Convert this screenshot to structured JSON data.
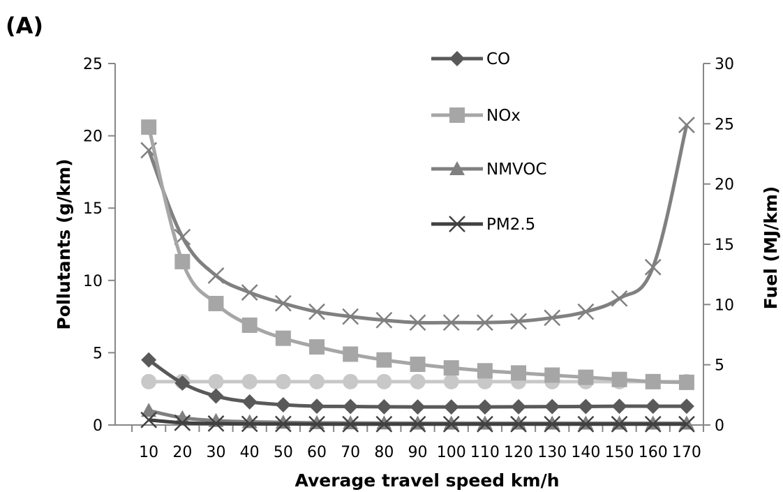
{
  "chart_data": {
    "type": "line",
    "panel_label": "(A)",
    "xlabel": "Average travel speed km/h",
    "ylabel": "Pollutants  (g/km)",
    "y2label": "Fuel (MJ/km)",
    "categories": [
      "10",
      "20",
      "30",
      "40",
      "50",
      "60",
      "70",
      "80",
      "90",
      "100",
      "110",
      "120",
      "130",
      "140",
      "150",
      "160",
      "170"
    ],
    "ylim": [
      0,
      25
    ],
    "y2lim": [
      0,
      30
    ],
    "yticks": [
      "0",
      "5",
      "10",
      "15",
      "20",
      "25"
    ],
    "y2ticks": [
      "0",
      "5",
      "10",
      "15",
      "20",
      "25",
      "30"
    ],
    "legend_position": "top-center",
    "series": [
      {
        "name": "CO",
        "axis": "left",
        "marker": "diamond",
        "color": "#595959",
        "values": [
          4.5,
          2.9,
          2.0,
          1.6,
          1.4,
          1.3,
          1.28,
          1.26,
          1.25,
          1.25,
          1.25,
          1.26,
          1.27,
          1.28,
          1.3,
          1.3,
          1.3
        ]
      },
      {
        "name": "NOx",
        "axis": "left",
        "marker": "square",
        "color": "#a6a6a6",
        "values": [
          20.6,
          11.3,
          8.4,
          6.9,
          6.0,
          5.4,
          4.9,
          4.5,
          4.2,
          3.95,
          3.75,
          3.6,
          3.45,
          3.3,
          3.15,
          3.0,
          2.95
        ]
      },
      {
        "name": "NMVOC",
        "axis": "left",
        "marker": "triangle",
        "color": "#808080",
        "values": [
          1.0,
          0.5,
          0.3,
          0.22,
          0.18,
          0.15,
          0.14,
          0.13,
          0.12,
          0.12,
          0.12,
          0.12,
          0.12,
          0.12,
          0.12,
          0.12,
          0.12
        ]
      },
      {
        "name": "PM2.5",
        "axis": "left",
        "marker": "x",
        "color": "#404040",
        "values": [
          0.35,
          0.15,
          0.1,
          0.08,
          0.07,
          0.06,
          0.06,
          0.06,
          0.06,
          0.06,
          0.06,
          0.06,
          0.06,
          0.06,
          0.06,
          0.06,
          0.06
        ]
      },
      {
        "axis": "left",
        "marker": "circle",
        "color": "#c8c8c8",
        "values": [
          3,
          3,
          3,
          3,
          3,
          3,
          3,
          3,
          3,
          3,
          3,
          3,
          3,
          3,
          3,
          3,
          3
        ]
      },
      {
        "axis": "right",
        "marker": "x",
        "color": "#808080",
        "values": [
          22.8,
          15.6,
          12.4,
          11.0,
          10.1,
          9.4,
          9.0,
          8.7,
          8.5,
          8.5,
          8.5,
          8.6,
          8.9,
          9.4,
          10.5,
          13.1,
          24.9
        ]
      }
    ]
  }
}
